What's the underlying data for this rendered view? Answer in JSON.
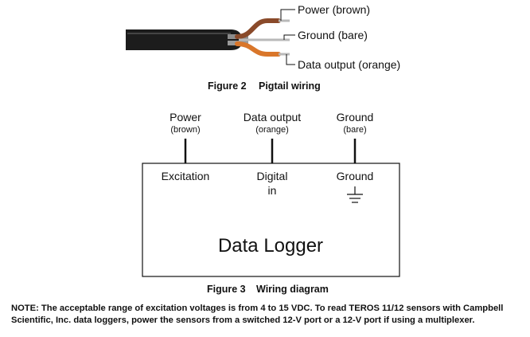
{
  "figure2": {
    "wire_labels": {
      "power": "Power (brown)",
      "ground": "Ground (bare)",
      "data": "Data output (orange)"
    },
    "caption_number": "Figure 2",
    "caption_title": "Pigtail wiring"
  },
  "figure3": {
    "top_labels": {
      "power": "Power",
      "power_sub": "(brown)",
      "data": "Data output",
      "data_sub": "(orange)",
      "ground": "Ground",
      "ground_sub": "(bare)"
    },
    "box_labels": {
      "excitation": "Excitation",
      "digital_line1": "Digital",
      "digital_line2": "in",
      "ground": "Ground"
    },
    "logger_title": "Data Logger",
    "caption_number": "Figure 3",
    "caption_title": "Wiring diagram"
  },
  "note": {
    "line1": "NOTE: The acceptable range of excitation voltages is from 4 to 15 VDC. To read TEROS 11/12 sensors with Campbell",
    "line2": "Scientific, Inc. data loggers, power the sensors from a switched 12-V port or a 12-V port if using a multiplexer."
  },
  "colors": {
    "cable_jacket": "#1c1c1c",
    "brown_insulation": "#8a4a2a",
    "orange_insulation": "#d9762a",
    "bare_wire": "#b9b9b9"
  }
}
